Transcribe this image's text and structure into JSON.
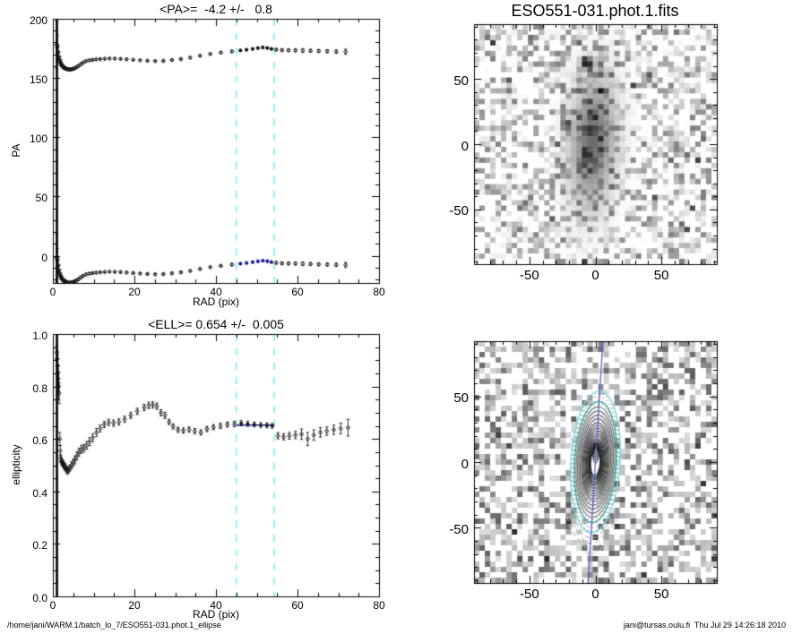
{
  "page": {
    "background": "#ffffff"
  },
  "footer": {
    "left": "/home/jani/WARM.1/batch_lo_7/ESO551-031.phot.1_ellipse",
    "right": "jani@tursas.oulu.fi  Thu Jul 29 14:26:18 2010"
  },
  "colors": {
    "axis": "#000000",
    "fit_range_dash": "#7deef2",
    "fit_marker_blue": "#1a1aa6",
    "upper_fit_marker": "#111111",
    "ellipse_teal": "#2aa79b",
    "ellipse_cyan": "#76dde2",
    "major_axis_blue": "#5c5ccd",
    "contour_dark": "#1a1a1a",
    "contour_gray": "#8a8a8a",
    "arc_light": "#b4b4b4"
  },
  "chart_data": [
    {
      "id": "pa_profile",
      "type": "scatter",
      "title": "<PA>=  -4.2 +/-   0.8",
      "xlabel": "RAD (pix)",
      "ylabel": "PA",
      "xlim": [
        0,
        80
      ],
      "ylim": [
        -23,
        200
      ],
      "xticks": [
        0,
        20,
        40,
        60,
        80
      ],
      "xtick_labels": [
        "0",
        "20",
        "40",
        "60",
        "80"
      ],
      "yticks": [
        0,
        50,
        100,
        150,
        200
      ],
      "ytick_labels": [
        "0",
        "50",
        "100",
        "150",
        "200"
      ],
      "x_minor_step": 5,
      "y_minor_step": 10,
      "grid": false,
      "vline_x": 1,
      "fit_range_pix": [
        45,
        54.3
      ],
      "mean_pa": -4.2,
      "mean_pa_err": 0.8,
      "lower_branch_offset": -180,
      "series": [
        {
          "name": "PA (upper branch, deg)",
          "marker": "open-diamond",
          "points": [
            [
              0.9,
              178,
              20
            ],
            [
              1.1,
              176,
              10
            ],
            [
              1.3,
              172,
              6
            ],
            [
              1.5,
              168,
              4
            ],
            [
              1.7,
              165,
              3
            ],
            [
              1.9,
              163,
              2.5
            ],
            [
              2.1,
              161.5,
              2
            ],
            [
              2.4,
              160,
              1.8
            ],
            [
              2.7,
              159,
              1.5
            ],
            [
              3,
              158.3,
              1.2
            ],
            [
              3.3,
              157.8,
              1.2
            ],
            [
              3.6,
              157.4,
              1
            ],
            [
              4,
              157.2,
              1
            ],
            [
              4.4,
              157.3,
              1
            ],
            [
              4.8,
              157.6,
              1
            ],
            [
              5.2,
              158.1,
              1
            ],
            [
              5.7,
              158.9,
              1
            ],
            [
              6.2,
              160,
              1
            ],
            [
              6.8,
              161.5,
              1
            ],
            [
              7.4,
              163,
              0.9
            ],
            [
              8.1,
              164.2,
              0.8
            ],
            [
              8.9,
              164.9,
              0.8
            ],
            [
              9.7,
              165.3,
              0.7
            ],
            [
              10.6,
              165.7,
              0.7
            ],
            [
              11.6,
              166,
              0.7
            ],
            [
              12.7,
              166.3,
              0.7
            ],
            [
              13.9,
              166.5,
              0.7
            ],
            [
              15.2,
              166.4,
              0.7
            ],
            [
              16.6,
              166.2,
              0.7
            ],
            [
              18.1,
              165.8,
              0.7
            ],
            [
              19.7,
              165.4,
              0.7
            ],
            [
              21.4,
              165,
              0.7
            ],
            [
              23.2,
              164.6,
              0.7
            ],
            [
              25.1,
              164.3,
              0.7
            ],
            [
              27.1,
              164.5,
              0.8
            ],
            [
              29.2,
              165.2,
              0.8
            ],
            [
              31.4,
              166,
              0.8
            ],
            [
              33.7,
              167.2,
              0.8
            ],
            [
              36.1,
              168.8,
              0.8
            ],
            [
              38.6,
              170.3,
              0.8
            ],
            [
              41.2,
              171.5,
              0.8
            ],
            [
              43.9,
              172.5,
              0.9
            ],
            [
              46,
              173.3,
              0.9
            ],
            [
              47.5,
              173.9,
              0.9
            ],
            [
              49,
              174.6,
              0.9
            ],
            [
              50.3,
              175.3,
              0.9
            ],
            [
              51.5,
              175.8,
              0.9
            ],
            [
              52.6,
              175.4,
              0.9
            ],
            [
              53.6,
              174.6,
              0.9
            ],
            [
              54.8,
              174,
              1
            ],
            [
              56.2,
              173.6,
              1
            ],
            [
              57.8,
              173.5,
              1.1
            ],
            [
              59.5,
              173.4,
              1.2
            ],
            [
              61.3,
              173.2,
              1.6
            ],
            [
              63.2,
              173,
              1.2
            ],
            [
              65.2,
              172.8,
              1.2
            ],
            [
              67.3,
              172.6,
              1.3
            ],
            [
              69.5,
              172.3,
              1.3
            ],
            [
              71.8,
              172.2,
              2.2
            ]
          ]
        }
      ]
    },
    {
      "id": "ellipticity_profile",
      "type": "scatter",
      "title": "<ELL>= 0.654 +/-  0.005",
      "xlabel": "RAD (pix)",
      "ylabel": "ellipticity",
      "xlim": [
        0,
        80
      ],
      "ylim": [
        0,
        1
      ],
      "xticks": [
        0,
        20,
        40,
        60,
        80
      ],
      "xtick_labels": [
        "0",
        "20",
        "40",
        "60",
        "80"
      ],
      "yticks": [
        0,
        0.2,
        0.4,
        0.6,
        0.8,
        1
      ],
      "ytick_labels": [
        "0.0",
        "0.2",
        "0.4",
        "0.6",
        "0.8",
        "1.0"
      ],
      "x_minor_step": 5,
      "y_minor_step": 0.05,
      "grid": false,
      "vline_x": 1,
      "fit_range_pix": [
        45,
        54.3
      ],
      "mean_ell": 0.654,
      "mean_ell_err": 0.005,
      "fit_line_y": 0.653,
      "series": [
        {
          "name": "ellipticity",
          "marker": "open-diamond",
          "points": [
            [
              0.95,
              0.93,
              0.025
            ],
            [
              1.05,
              0.905,
              0.03
            ],
            [
              1.15,
              0.88,
              0.04
            ],
            [
              1.25,
              0.855,
              0.05
            ],
            [
              1.35,
              0.83,
              0.05
            ],
            [
              1.45,
              0.8,
              0.05
            ],
            [
              1.55,
              0.775,
              0.04
            ],
            [
              1.7,
              0.6,
              0.025
            ],
            [
              1.82,
              0.555,
              0.02
            ],
            [
              1.95,
              0.525,
              0.015
            ],
            [
              2.1,
              0.515,
              0.013
            ],
            [
              2.3,
              0.51,
              0.012
            ],
            [
              2.5,
              0.505,
              0.012
            ],
            [
              2.7,
              0.5,
              0.012
            ],
            [
              2.9,
              0.495,
              0.012
            ],
            [
              3.1,
              0.49,
              0.012
            ],
            [
              3.35,
              0.483,
              0.012
            ],
            [
              3.6,
              0.478,
              0.012
            ],
            [
              3.9,
              0.483,
              0.012
            ],
            [
              4.2,
              0.49,
              0.012
            ],
            [
              4.6,
              0.5,
              0.013
            ],
            [
              5,
              0.51,
              0.014
            ],
            [
              5.4,
              0.52,
              0.015
            ],
            [
              5.9,
              0.535,
              0.015
            ],
            [
              6.4,
              0.55,
              0.015
            ],
            [
              7,
              0.56,
              0.015
            ],
            [
              7.6,
              0.565,
              0.015
            ],
            [
              8.3,
              0.575,
              0.015
            ],
            [
              9,
              0.59,
              0.015
            ],
            [
              9.8,
              0.605,
              0.015
            ],
            [
              10.7,
              0.625,
              0.015
            ],
            [
              11.6,
              0.64,
              0.013
            ],
            [
              12.6,
              0.655,
              0.012
            ],
            [
              13.7,
              0.663,
              0.012
            ],
            [
              14.9,
              0.66,
              0.012
            ],
            [
              16.2,
              0.665,
              0.012
            ],
            [
              17.6,
              0.675,
              0.012
            ],
            [
              19.1,
              0.69,
              0.012
            ],
            [
              20.7,
              0.705,
              0.012
            ],
            [
              22.4,
              0.72,
              0.012
            ],
            [
              23.5,
              0.728,
              0.012
            ],
            [
              24.5,
              0.73,
              0.012
            ],
            [
              25.5,
              0.725,
              0.012
            ],
            [
              26.5,
              0.7,
              0.012
            ],
            [
              27.5,
              0.69,
              0.012
            ],
            [
              28.5,
              0.665,
              0.01
            ],
            [
              29.5,
              0.648,
              0.01
            ],
            [
              30.7,
              0.635,
              0.01
            ],
            [
              32,
              0.632,
              0.01
            ],
            [
              33.4,
              0.636,
              0.01
            ],
            [
              34.8,
              0.63,
              0.01
            ],
            [
              36.3,
              0.625,
              0.01
            ],
            [
              37.8,
              0.638,
              0.01
            ],
            [
              39.4,
              0.645,
              0.01
            ],
            [
              41.1,
              0.65,
              0.01
            ],
            [
              42.8,
              0.655,
              0.01
            ],
            [
              44.5,
              0.657,
              0.01
            ],
            [
              46.2,
              0.66,
              0.01
            ],
            [
              47.8,
              0.658,
              0.01
            ],
            [
              49.4,
              0.655,
              0.009
            ],
            [
              51,
              0.653,
              0.009
            ],
            [
              52.5,
              0.652,
              0.009
            ],
            [
              53.8,
              0.65,
              0.009
            ],
            [
              55.2,
              0.612,
              0.012
            ],
            [
              56.6,
              0.608,
              0.012
            ],
            [
              58,
              0.612,
              0.013
            ],
            [
              59.5,
              0.615,
              0.014
            ],
            [
              61,
              0.618,
              0.02
            ],
            [
              62.5,
              0.6,
              0.025
            ],
            [
              64,
              0.615,
              0.02
            ],
            [
              65.6,
              0.625,
              0.018
            ],
            [
              67.2,
              0.63,
              0.016
            ],
            [
              68.9,
              0.635,
              0.018
            ],
            [
              70.6,
              0.64,
              0.02
            ],
            [
              72.4,
              0.643,
              0.032
            ]
          ]
        }
      ]
    },
    {
      "id": "galaxy_image",
      "type": "heatmap",
      "title": "ESO551-031.phot.1.fits",
      "xlim": [
        -92,
        92
      ],
      "ylim": [
        -92,
        92
      ],
      "xticks": [
        -50,
        0,
        50
      ],
      "xtick_labels": [
        "-50",
        "0",
        "50"
      ],
      "yticks": [
        50,
        0,
        -50
      ],
      "ytick_labels": [
        "50",
        "0",
        "-50"
      ],
      "minor_step": 10,
      "grid_cells": 45,
      "noise_seed": 7,
      "galaxy": {
        "cx": -2,
        "cy": 2,
        "sigma_minor": 12,
        "sigma_major": 34,
        "peak": 0.58,
        "tilt_deg": 3.5
      },
      "dark_spots": [
        [
          -6,
          62,
          0.85,
          4.5
        ],
        [
          -22,
          15,
          0.8,
          3.5
        ],
        [
          61,
          -1,
          0.42,
          5
        ],
        [
          -66,
          41,
          0.5,
          3.5
        ],
        [
          -52,
          -46,
          0.42,
          4
        ],
        [
          -43,
          -76,
          0.38,
          4
        ],
        [
          55,
          -78,
          0.35,
          4
        ]
      ]
    },
    {
      "id": "ellipse_fit_overlay",
      "type": "heatmap",
      "title": "",
      "xlim": [
        -92,
        92
      ],
      "ylim": [
        -92,
        92
      ],
      "xticks": [
        -50,
        0,
        50
      ],
      "xtick_labels": [
        "-50",
        "0",
        "50"
      ],
      "yticks": [
        50,
        0,
        -50
      ],
      "ytick_labels": [
        "50",
        "0",
        "-50"
      ],
      "minor_step": 10,
      "grid_cells": 45,
      "noise_seed": 13,
      "mask_sma": 42,
      "contours": {
        "ellipticity": 0.654,
        "tilt_deg": 3.5,
        "solid_smas": [
          10.5,
          12,
          13.5,
          15,
          16.5,
          18,
          20,
          22,
          24,
          26,
          28,
          30,
          33,
          36,
          39,
          42
        ],
        "dotted_smas": [
          31.5,
          35,
          38.5,
          44,
          47,
          50,
          53
        ],
        "bottom_arc_smas": [
          56,
          60,
          64,
          68
        ],
        "inner_fan_smas": [
          2,
          3,
          4,
          5,
          6,
          7,
          8
        ]
      },
      "fit_ellipses": {
        "smas": [
          46,
          54
        ]
      },
      "major_axis_line": {
        "tilt_deg": 3.5
      }
    }
  ]
}
